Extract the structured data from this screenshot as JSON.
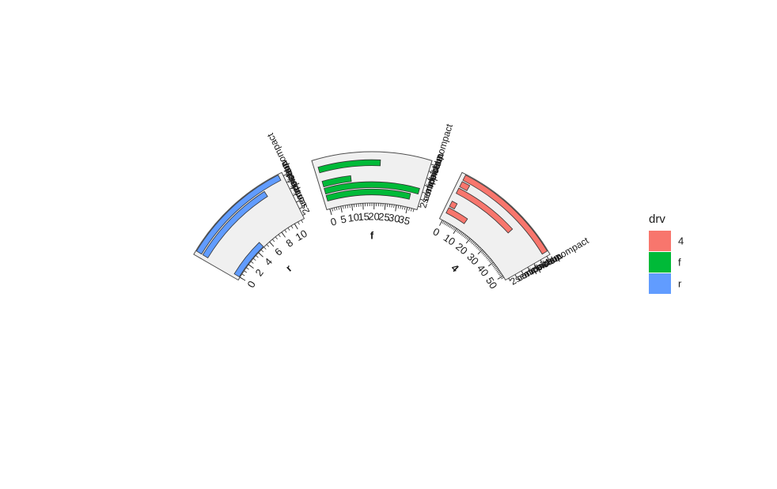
{
  "chart_data": {
    "type": "bar",
    "coord": "polar",
    "facet_by": "drv",
    "categories": [
      "2seater",
      "compact",
      "midsize",
      "minivan",
      "pickup",
      "subcompact",
      "suv"
    ],
    "panels": [
      {
        "strip": "r",
        "fill": "#619CFF",
        "ylim": [
          0,
          11
        ],
        "yticks": [
          0,
          2,
          4,
          6,
          8,
          10
        ],
        "values": [
          5,
          0,
          0,
          0,
          0,
          9,
          11
        ]
      },
      {
        "strip": "f",
        "fill": "#00BA38",
        "ylim": [
          0,
          38
        ],
        "yticks": [
          0,
          5,
          10,
          15,
          20,
          25,
          30,
          35
        ],
        "values": [
          0,
          35,
          38,
          11,
          0,
          22,
          0
        ]
      },
      {
        "strip": "4",
        "fill": "#F8766D",
        "ylim": [
          0,
          51
        ],
        "yticks": [
          0,
          10,
          20,
          30,
          40,
          50
        ],
        "values": [
          0,
          12,
          3,
          0,
          33,
          4,
          51
        ]
      }
    ],
    "legend": {
      "title": "drv",
      "position": "right",
      "items": [
        {
          "label": "4",
          "color": "#F8766D"
        },
        {
          "label": "f",
          "color": "#00BA38"
        },
        {
          "label": "r",
          "color": "#619CFF"
        }
      ]
    },
    "panel_background": "#F0F0F0",
    "bar_outline": "#333333"
  }
}
